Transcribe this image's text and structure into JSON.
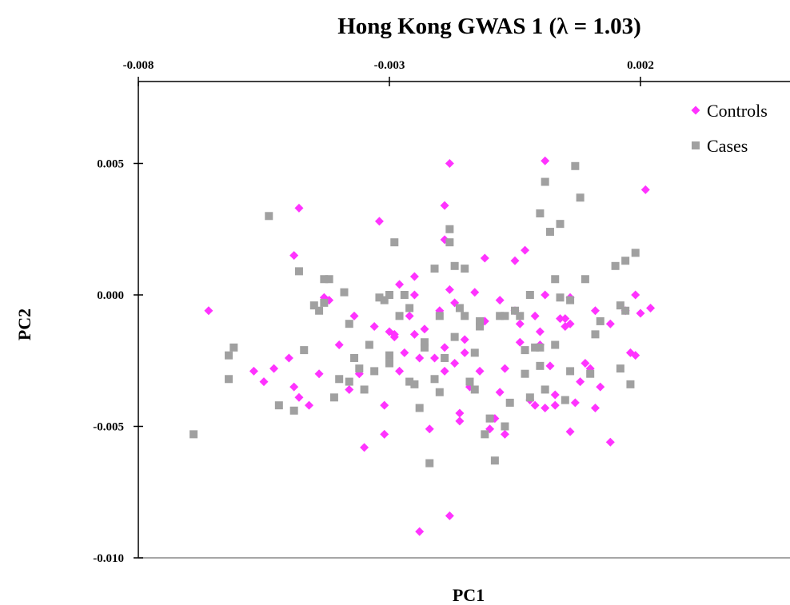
{
  "chart_data": {
    "type": "scatter",
    "title": "Hong Kong GWAS 1 (λ = 1.03)",
    "xlabel": "PC1",
    "ylabel": "PC2",
    "xlim": [
      -0.008,
      0.0075
    ],
    "ylim": [
      -0.01,
      0.008
    ],
    "xticks": [
      -0.008,
      -0.003,
      0.002
    ],
    "xtick_labels": [
      "-0.008",
      "-0.003",
      "0.002"
    ],
    "yticks": [
      0.005,
      0.0,
      -0.005,
      -0.01
    ],
    "ytick_labels": [
      "0.005",
      "0.000",
      "-0.005",
      "-0.010"
    ],
    "x_axis_position": "top",
    "grid": false,
    "legend_position": "top-right",
    "series": [
      {
        "name": "Controls",
        "color": "#ff33ff",
        "marker": "diamond",
        "points": [
          [
            -0.0066,
            -0.0006
          ],
          [
            -0.0057,
            -0.0029
          ],
          [
            -0.0055,
            -0.0033
          ],
          [
            -0.0053,
            -0.0028
          ],
          [
            -0.005,
            -0.0024
          ],
          [
            -0.0049,
            -0.0035
          ],
          [
            -0.0048,
            -0.0039
          ],
          [
            -0.0049,
            0.0015
          ],
          [
            -0.0048,
            0.0033
          ],
          [
            -0.0046,
            -0.0042
          ],
          [
            -0.0044,
            -0.003
          ],
          [
            -0.0043,
            -0.0001
          ],
          [
            -0.0042,
            -0.0002
          ],
          [
            -0.004,
            -0.0019
          ],
          [
            -0.0038,
            -0.0036
          ],
          [
            -0.0037,
            -0.0008
          ],
          [
            -0.0036,
            -0.003
          ],
          [
            -0.0035,
            -0.0058
          ],
          [
            -0.0033,
            -0.0012
          ],
          [
            -0.0032,
            0.0028
          ],
          [
            -0.0031,
            -0.0042
          ],
          [
            -0.0031,
            -0.0053
          ],
          [
            -0.003,
            -0.0014
          ],
          [
            -0.0029,
            -0.0016
          ],
          [
            -0.0028,
            -0.0029
          ],
          [
            -0.0028,
            0.0004
          ],
          [
            -0.0027,
            -0.0022
          ],
          [
            -0.0026,
            -0.0008
          ],
          [
            -0.0025,
            0.0007
          ],
          [
            -0.0025,
            -0.0015
          ],
          [
            -0.0024,
            -0.009
          ],
          [
            -0.0024,
            -0.0024
          ],
          [
            -0.0023,
            -0.0013
          ],
          [
            -0.0022,
            -0.0051
          ],
          [
            -0.0021,
            -0.0024
          ],
          [
            -0.002,
            -0.0006
          ],
          [
            -0.0019,
            0.0021
          ],
          [
            -0.0019,
            -0.002
          ],
          [
            -0.0019,
            -0.0029
          ],
          [
            -0.0018,
            -0.0084
          ],
          [
            -0.0018,
            0.0002
          ],
          [
            -0.0017,
            -0.0026
          ],
          [
            -0.0017,
            -0.0003
          ],
          [
            -0.0016,
            -0.0045
          ],
          [
            -0.0016,
            -0.0048
          ],
          [
            -0.0015,
            -0.0022
          ],
          [
            -0.0015,
            -0.0017
          ],
          [
            -0.0014,
            -0.0035
          ],
          [
            -0.0013,
            0.0001
          ],
          [
            -0.0012,
            -0.0029
          ],
          [
            -0.0011,
            0.0014
          ],
          [
            -0.001,
            -0.0051
          ],
          [
            -0.0009,
            -0.0047
          ],
          [
            -0.0008,
            -0.0002
          ],
          [
            -0.0008,
            -0.0037
          ],
          [
            -0.0007,
            -0.0028
          ],
          [
            -0.0007,
            -0.0053
          ],
          [
            -0.0005,
            -0.0006
          ],
          [
            -0.0005,
            0.0013
          ],
          [
            -0.0004,
            -0.0018
          ],
          [
            -0.0004,
            -0.0011
          ],
          [
            -0.0003,
            0.0017
          ],
          [
            -0.0002,
            -0.004
          ],
          [
            -0.0001,
            -0.0042
          ],
          [
            -0.0001,
            -0.0008
          ],
          [
            0.0,
            -0.0014
          ],
          [
            0.0,
            -0.0019
          ],
          [
            0.0001,
            0.0
          ],
          [
            0.0001,
            -0.0043
          ],
          [
            0.0002,
            -0.0027
          ],
          [
            0.0003,
            -0.0038
          ],
          [
            0.0003,
            -0.0042
          ],
          [
            0.0004,
            -0.0009
          ],
          [
            0.0005,
            -0.0009
          ],
          [
            0.0005,
            -0.0012
          ],
          [
            0.0006,
            -0.0011
          ],
          [
            0.0006,
            -0.0052
          ],
          [
            0.0007,
            -0.0041
          ],
          [
            0.0008,
            -0.0033
          ],
          [
            0.0009,
            -0.0026
          ],
          [
            0.001,
            -0.0028
          ],
          [
            0.0011,
            -0.0043
          ],
          [
            0.0011,
            -0.0006
          ],
          [
            0.0012,
            -0.0035
          ],
          [
            0.0014,
            -0.0011
          ],
          [
            0.0014,
            -0.0056
          ],
          [
            0.0017,
            -0.0006
          ],
          [
            0.0018,
            -0.0022
          ],
          [
            0.0019,
            -0.0023
          ],
          [
            0.0019,
            0.0
          ],
          [
            0.002,
            -0.0007
          ],
          [
            0.0021,
            0.004
          ],
          [
            0.0022,
            -0.0005
          ],
          [
            -0.0018,
            0.005
          ],
          [
            -0.0019,
            0.0034
          ],
          [
            0.0001,
            0.0051
          ],
          [
            -0.0025,
            0.0
          ],
          [
            -0.0029,
            -0.0015
          ],
          [
            -0.0011,
            -0.001
          ],
          [
            0.0006,
            -0.0001
          ]
        ]
      },
      {
        "name": "Cases",
        "color": "#a0a0a0",
        "marker": "square",
        "points": [
          [
            -0.0069,
            -0.0053
          ],
          [
            -0.0062,
            -0.0023
          ],
          [
            -0.0062,
            -0.0032
          ],
          [
            -0.0061,
            -0.002
          ],
          [
            -0.0054,
            0.003
          ],
          [
            -0.0052,
            -0.0042
          ],
          [
            -0.0049,
            -0.0044
          ],
          [
            -0.0048,
            0.0009
          ],
          [
            -0.0047,
            -0.0021
          ],
          [
            -0.0045,
            -0.0004
          ],
          [
            -0.0044,
            -0.0006
          ],
          [
            -0.0043,
            -0.0003
          ],
          [
            -0.0043,
            0.0006
          ],
          [
            -0.0042,
            0.0006
          ],
          [
            -0.0041,
            -0.0039
          ],
          [
            -0.004,
            -0.0032
          ],
          [
            -0.0039,
            0.0001
          ],
          [
            -0.0038,
            -0.0033
          ],
          [
            -0.0037,
            -0.0024
          ],
          [
            -0.0036,
            -0.0028
          ],
          [
            -0.0035,
            -0.0036
          ],
          [
            -0.0034,
            -0.0019
          ],
          [
            -0.0033,
            -0.0029
          ],
          [
            -0.0032,
            -0.0001
          ],
          [
            -0.0031,
            -0.0002
          ],
          [
            -0.003,
            -0.0023
          ],
          [
            -0.003,
            -0.0026
          ],
          [
            -0.0029,
            0.002
          ],
          [
            -0.0028,
            -0.0008
          ],
          [
            -0.0027,
            0.0
          ],
          [
            -0.0026,
            -0.0033
          ],
          [
            -0.0026,
            -0.0005
          ],
          [
            -0.0025,
            -0.0034
          ],
          [
            -0.0024,
            -0.0043
          ],
          [
            -0.0023,
            -0.0018
          ],
          [
            -0.0023,
            -0.002
          ],
          [
            -0.0022,
            -0.0064
          ],
          [
            -0.0021,
            0.001
          ],
          [
            -0.0021,
            -0.0032
          ],
          [
            -0.002,
            -0.0008
          ],
          [
            -0.002,
            -0.0037
          ],
          [
            -0.0019,
            -0.0024
          ],
          [
            -0.0018,
            0.002
          ],
          [
            -0.0018,
            0.0025
          ],
          [
            -0.0017,
            0.0011
          ],
          [
            -0.0017,
            -0.0016
          ],
          [
            -0.0016,
            -0.0005
          ],
          [
            -0.0015,
            -0.0008
          ],
          [
            -0.0015,
            0.001
          ],
          [
            -0.0014,
            -0.0033
          ],
          [
            -0.0013,
            -0.0036
          ],
          [
            -0.0013,
            -0.0022
          ],
          [
            -0.0012,
            -0.001
          ],
          [
            -0.0011,
            -0.0053
          ],
          [
            -0.001,
            -0.0047
          ],
          [
            -0.0009,
            -0.0063
          ],
          [
            -0.0008,
            -0.0008
          ],
          [
            -0.0007,
            -0.005
          ],
          [
            -0.0006,
            -0.0041
          ],
          [
            -0.0005,
            -0.0006
          ],
          [
            -0.0004,
            -0.0008
          ],
          [
            -0.0003,
            -0.0021
          ],
          [
            -0.0003,
            -0.003
          ],
          [
            -0.0002,
            0.0
          ],
          [
            -0.0002,
            -0.0039
          ],
          [
            -0.0001,
            -0.002
          ],
          [
            0.0,
            -0.0027
          ],
          [
            0.0,
            0.0031
          ],
          [
            0.0001,
            0.0043
          ],
          [
            0.0001,
            -0.0036
          ],
          [
            0.0002,
            0.0024
          ],
          [
            0.0003,
            -0.0019
          ],
          [
            0.0003,
            0.0006
          ],
          [
            0.0004,
            -0.0001
          ],
          [
            0.0004,
            0.0027
          ],
          [
            0.0005,
            -0.004
          ],
          [
            0.0006,
            -0.0029
          ],
          [
            0.0006,
            -0.0002
          ],
          [
            0.0007,
            0.0049
          ],
          [
            0.0008,
            0.0037
          ],
          [
            0.0009,
            0.0006
          ],
          [
            0.001,
            -0.003
          ],
          [
            0.0011,
            -0.0015
          ],
          [
            0.0012,
            -0.001
          ],
          [
            0.0015,
            0.0011
          ],
          [
            0.0016,
            -0.0028
          ],
          [
            0.0016,
            -0.0004
          ],
          [
            0.0017,
            0.0013
          ],
          [
            0.0017,
            -0.0006
          ],
          [
            0.0018,
            -0.0034
          ],
          [
            0.0019,
            0.0016
          ],
          [
            -0.0038,
            -0.0011
          ],
          [
            -0.003,
            0.0
          ],
          [
            -0.0012,
            -0.0012
          ],
          [
            0.0,
            -0.002
          ],
          [
            -0.0007,
            -0.0008
          ]
        ]
      }
    ]
  }
}
